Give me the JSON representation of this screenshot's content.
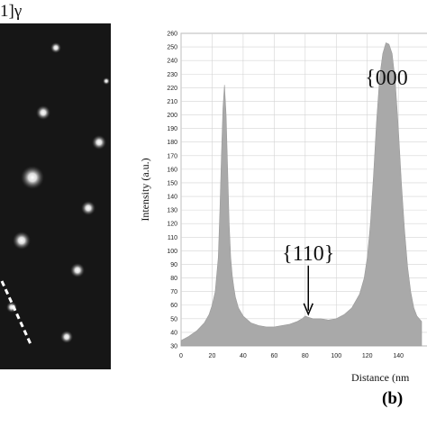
{
  "panel_a": {
    "title_fragment": "1]γ"
  },
  "chart_data": {
    "type": "area",
    "title": "",
    "xlabel": "Distance (nm",
    "ylabel": "Intensity (a.u.)",
    "xlim": [
      0,
      155
    ],
    "ylim": [
      30,
      260
    ],
    "x_ticks": [
      0,
      20,
      40,
      60,
      80,
      100,
      120,
      140
    ],
    "y_ticks": [
      30,
      40,
      50,
      60,
      70,
      80,
      90,
      100,
      110,
      120,
      130,
      140,
      150,
      160,
      170,
      180,
      190,
      200,
      210,
      220,
      230,
      240,
      250,
      260
    ],
    "grid": true,
    "fill_color": "#a9a9a9",
    "series": [
      {
        "x": [
          0,
          5,
          10,
          15,
          18,
          20,
          22,
          24,
          25,
          26,
          27,
          28,
          29,
          30,
          31,
          32,
          33,
          34,
          35,
          37,
          40,
          45,
          50,
          55,
          60,
          65,
          70,
          75,
          78,
          80,
          82,
          85,
          90,
          95,
          100,
          105,
          110,
          115,
          118,
          120,
          122,
          124,
          126,
          128,
          130,
          132,
          134,
          136,
          138,
          140,
          142,
          144,
          146,
          148,
          150,
          152,
          155
        ],
        "y": [
          34,
          37,
          41,
          47,
          53,
          60,
          70,
          95,
          130,
          170,
          205,
          222,
          200,
          160,
          120,
          95,
          82,
          73,
          66,
          58,
          52,
          47,
          45,
          44,
          44,
          45,
          46,
          48,
          50,
          52,
          51,
          50,
          50,
          49,
          50,
          53,
          58,
          68,
          80,
          95,
          120,
          155,
          195,
          228,
          245,
          253,
          252,
          245,
          225,
          190,
          150,
          115,
          88,
          70,
          58,
          52,
          48
        ]
      }
    ],
    "annotations": [
      {
        "text": "{110}",
        "x": 82,
        "y": 52
      },
      {
        "text": "{000",
        "x": 136,
        "y": 254
      }
    ],
    "panel_label": "(b)"
  }
}
